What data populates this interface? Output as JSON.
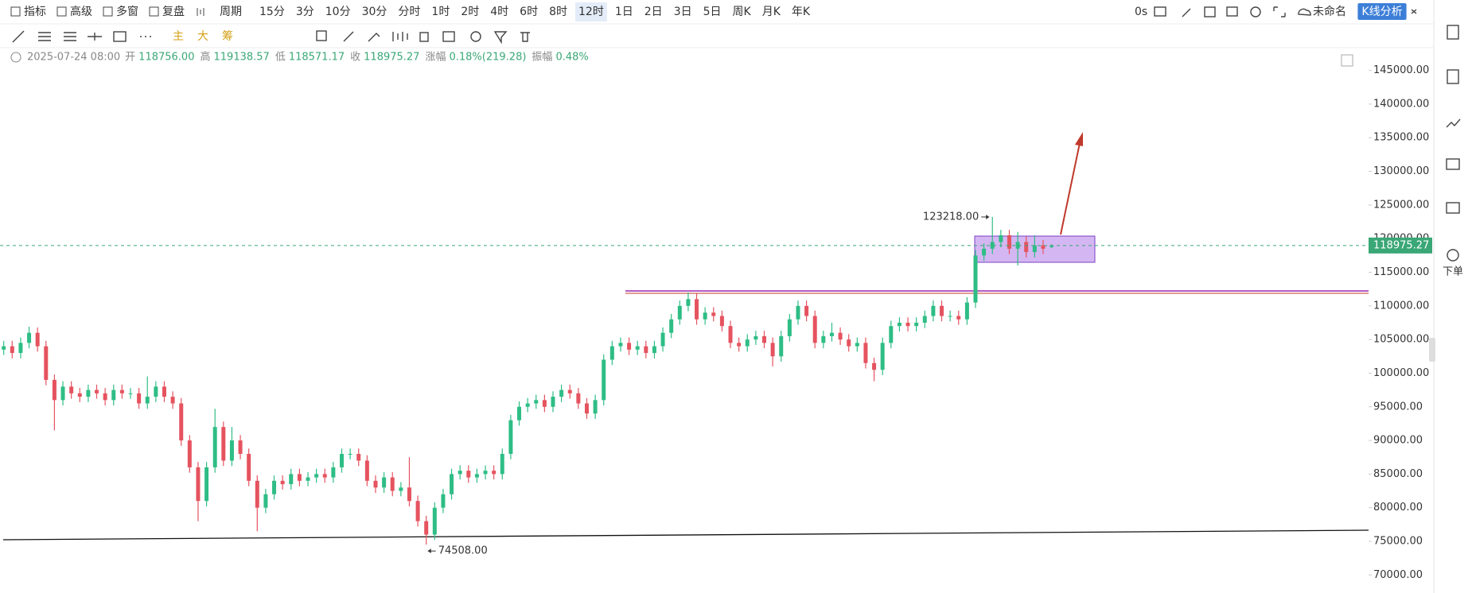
{
  "toolbar": {
    "menus": [
      "指标",
      "高级",
      "多窗",
      "复盘"
    ],
    "period_menu": "周期",
    "periods": [
      "15分",
      "3分",
      "10分",
      "30分",
      "分时",
      "1时",
      "2时",
      "4时",
      "6时",
      "8时",
      "12时",
      "1日",
      "2日",
      "3日",
      "5日",
      "周K",
      "月K",
      "年K"
    ],
    "selected_period": "12时",
    "countdown": "0s",
    "layout_name": "未命名",
    "analysis_button": "K线分析",
    "indicators": [
      "主",
      "大",
      "筹"
    ]
  },
  "info": {
    "datetime": "2025-07-24 08:00",
    "fields": [
      {
        "name": "开",
        "value": "118756.00"
      },
      {
        "name": "高",
        "value": "119138.57"
      },
      {
        "name": "低",
        "value": "118571.17"
      },
      {
        "name": "收",
        "value": "118975.27"
      },
      {
        "name": "涨幅",
        "value": "0.18%(219.28)"
      },
      {
        "name": "振幅",
        "value": "0.48%"
      }
    ]
  },
  "sidebar": {
    "order": "下单"
  },
  "chart_data": {
    "type": "candlestick",
    "open": [
      103500,
      104000,
      103000,
      104500,
      106000,
      104000,
      99000,
      96000,
      98000,
      97000,
      96500,
      97500,
      97000,
      96000,
      97500,
      97000,
      97000,
      95500,
      96500,
      98000,
      96500,
      95500,
      90000,
      86000,
      81000,
      86000,
      92000,
      87000,
      90000,
      88000,
      84000,
      80000,
      82000,
      84000,
      83500,
      85000,
      84000,
      84500,
      85000,
      84500,
      86000,
      88000,
      88000,
      87000,
      84000,
      83000,
      84500,
      82500,
      83000,
      81000,
      78000,
      76000,
      80000,
      82000,
      85000,
      85500,
      84500,
      85000,
      85500,
      85000,
      88000,
      93000,
      95000,
      95500,
      96000,
      95000,
      96500,
      97500,
      97000,
      95500,
      94000,
      96000,
      102000,
      104000,
      104500,
      103500,
      104000,
      103000,
      104000,
      106000,
      108000,
      110000,
      111000,
      108000,
      109000,
      108500,
      107000,
      104500,
      104000,
      105000,
      105500,
      104500,
      102500,
      105500,
      108000,
      110000,
      108500,
      104500,
      105500,
      106000,
      105000,
      104000,
      104500,
      101500,
      100500,
      104500,
      107000,
      107500,
      107000,
      107500,
      108500,
      110000,
      108500,
      108500,
      108000,
      110500,
      117500,
      118500,
      119500,
      120500,
      118500,
      119500,
      118000,
      119000,
      118756
    ],
    "high": [
      104800,
      104800,
      105300,
      106900,
      106800,
      104800,
      99800,
      98800,
      98800,
      97800,
      98300,
      98300,
      97800,
      98300,
      98300,
      97800,
      97800,
      99500,
      98800,
      98800,
      97300,
      96300,
      90800,
      86800,
      86800,
      94700,
      92800,
      92000,
      90800,
      88800,
      84800,
      82800,
      84800,
      84800,
      85800,
      85800,
      85300,
      85800,
      85800,
      86800,
      88800,
      88800,
      88800,
      87800,
      84800,
      85300,
      85300,
      83800,
      87500,
      81800,
      78800,
      80800,
      82800,
      85800,
      86300,
      86300,
      85800,
      86300,
      86300,
      88800,
      93800,
      95800,
      96300,
      96800,
      96800,
      97300,
      98300,
      98300,
      97800,
      96300,
      96800,
      102800,
      104800,
      105300,
      105300,
      104800,
      104800,
      104800,
      106800,
      108800,
      110800,
      112000,
      111800,
      109800,
      109800,
      109300,
      107800,
      105300,
      105800,
      106300,
      106300,
      105300,
      106300,
      108800,
      110800,
      110800,
      109300,
      106300,
      107500,
      106800,
      105800,
      105300,
      105300,
      102300,
      105300,
      107800,
      108300,
      108300,
      108300,
      109300,
      110800,
      110800,
      109300,
      109300,
      111300,
      118300,
      119300,
      123218,
      121300,
      121300,
      121000,
      120300,
      120500,
      119800,
      119138.57
    ],
    "low": [
      102700,
      102200,
      102200,
      103700,
      103200,
      98200,
      91500,
      95200,
      96200,
      95700,
      95700,
      96200,
      95200,
      95200,
      96200,
      96200,
      94700,
      94700,
      95700,
      95700,
      94700,
      89200,
      85200,
      78000,
      80200,
      85200,
      86200,
      86200,
      87200,
      83200,
      76500,
      79200,
      81200,
      82700,
      82700,
      83200,
      83200,
      83700,
      83700,
      83700,
      85200,
      87200,
      86200,
      83200,
      82200,
      82200,
      81700,
      81700,
      80200,
      77200,
      74508,
      75200,
      79200,
      81200,
      84200,
      83700,
      83700,
      84200,
      84200,
      84200,
      87200,
      92200,
      94200,
      94700,
      94200,
      94200,
      95700,
      96200,
      94700,
      93200,
      93200,
      95200,
      101200,
      103200,
      102700,
      102700,
      102200,
      102200,
      103200,
      105200,
      107200,
      109200,
      107200,
      107200,
      107700,
      106200,
      103700,
      103200,
      103200,
      104200,
      103700,
      101000,
      101700,
      104700,
      107200,
      107700,
      103700,
      103700,
      104700,
      104200,
      103200,
      103200,
      100700,
      98800,
      99700,
      103700,
      106200,
      106200,
      106200,
      106700,
      107700,
      107700,
      107700,
      107200,
      107200,
      109700,
      116700,
      117700,
      118700,
      117700,
      116000,
      117200,
      117200,
      117700,
      118571.17
    ],
    "close": [
      104000,
      103000,
      104500,
      106000,
      104000,
      99000,
      96000,
      98000,
      97000,
      96500,
      97500,
      97000,
      96000,
      97500,
      97000,
      97000,
      95500,
      96500,
      98000,
      96500,
      95500,
      90000,
      86000,
      81000,
      86000,
      92000,
      87000,
      90000,
      88000,
      84000,
      80000,
      82000,
      84000,
      83500,
      85000,
      84000,
      84500,
      85000,
      84500,
      86000,
      88000,
      88000,
      87000,
      84000,
      83000,
      84500,
      82500,
      83000,
      81000,
      78000,
      76000,
      80000,
      82000,
      85000,
      85500,
      84500,
      85000,
      85500,
      85000,
      88000,
      93000,
      95000,
      95500,
      96000,
      95000,
      96500,
      97500,
      97000,
      95500,
      94000,
      96000,
      102000,
      104000,
      104500,
      103500,
      104000,
      103000,
      104000,
      106000,
      108000,
      110000,
      111000,
      108000,
      109000,
      108500,
      107000,
      104500,
      104000,
      105000,
      105500,
      104500,
      102500,
      105500,
      108000,
      110000,
      108500,
      104500,
      105500,
      106000,
      105000,
      104000,
      104500,
      101500,
      100500,
      104500,
      107000,
      107500,
      107000,
      107500,
      108500,
      110000,
      108500,
      108500,
      108000,
      110500,
      117500,
      118500,
      119500,
      120500,
      118500,
      119500,
      118000,
      119000,
      118500,
      118975.27
    ],
    "up_color": "#2ebd85",
    "down_color": "#e5535f",
    "ylim": [
      67320,
      148500
    ],
    "yticks": [
      {
        "value": 70000,
        "label": "70000.00"
      },
      {
        "value": 75000,
        "label": "75000.00"
      },
      {
        "value": 80000,
        "label": "80000.00"
      },
      {
        "value": 85000,
        "label": "85000.00"
      },
      {
        "value": 90000,
        "label": "90000.00"
      },
      {
        "value": 95000,
        "label": "95000.00"
      },
      {
        "value": 100000,
        "label": "100000.00"
      },
      {
        "value": 105000,
        "label": "105000.00"
      },
      {
        "value": 110000,
        "label": "110000.00"
      },
      {
        "value": 115000,
        "label": "115000.00"
      },
      {
        "value": 120000,
        "label": "120000.00"
      },
      {
        "value": 125000,
        "label": "125000.00"
      },
      {
        "value": 130000,
        "label": "130000.00"
      },
      {
        "value": 135000,
        "label": "135000.00"
      },
      {
        "value": 140000,
        "label": "140000.00"
      },
      {
        "value": 145000,
        "label": "145000.00"
      }
    ],
    "last_price": 118975.27,
    "last_price_color": "#3aa776",
    "annotations": [
      {
        "value": 123218,
        "label": "123218.00"
      },
      {
        "value": 74508,
        "label": "74508.00"
      }
    ]
  }
}
